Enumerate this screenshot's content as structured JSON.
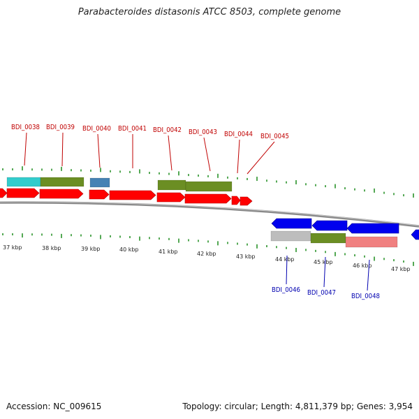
{
  "title": "Parabacteroides distasonis ATCC 8503, complete genome",
  "footer": {
    "accession": "Accession: NC_009615",
    "summary": "Topology: circular; Length: 4,811,379 bp; Genes: 3,954"
  },
  "colors": {
    "cds": "#ff0000",
    "cds_reverse": "#0000ee",
    "backbone": "#8a8a8a",
    "tick": "#1a8a1a",
    "label_forward": "#c00000",
    "label_reverse": "#0000b0",
    "cog_cyan": "#33cccc",
    "cog_olive": "#6b8e23",
    "cog_steelblue": "#4682b4",
    "cog_grey": "#bdbdbd",
    "cog_pink": "#f08080"
  },
  "ticks": {
    "labels": [
      "37 kbp",
      "38 kbp",
      "39 kbp",
      "40 kbp",
      "41 kbp",
      "42 kbp",
      "43 kbp",
      "44 kbp",
      "45 kbp",
      "46 kbp",
      "47 kbp"
    ]
  },
  "genes": {
    "forward": [
      "BDI_0038",
      "BDI_0039",
      "BDI_0040",
      "BDI_0041",
      "BDI_0042",
      "BDI_0043",
      "BDI_0044",
      "BDI_0045"
    ],
    "reverse": [
      "BDI_0046",
      "BDI_0047",
      "BDI_0048"
    ]
  }
}
